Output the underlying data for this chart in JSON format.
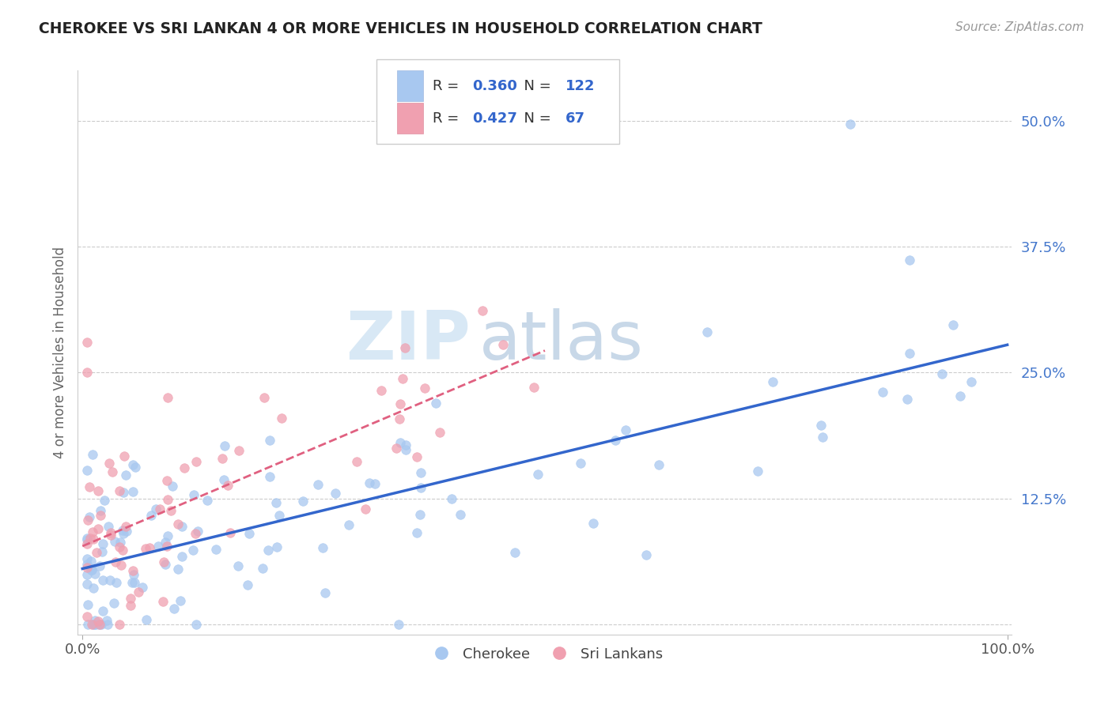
{
  "title": "CHEROKEE VS SRI LANKAN 4 OR MORE VEHICLES IN HOUSEHOLD CORRELATION CHART",
  "source": "Source: ZipAtlas.com",
  "ylabel": "4 or more Vehicles in Household",
  "legend_labels": [
    "Cherokee",
    "Sri Lankans"
  ],
  "cherokee_color": "#a8c8f0",
  "srilanka_color": "#f0a0b0",
  "line_cherokee_color": "#3366cc",
  "line_srilanka_color": "#e06080",
  "cherokee_R": 0.36,
  "cherokee_N": 122,
  "srilanka_R": 0.427,
  "srilanka_N": 67,
  "watermark_zip": "ZIP",
  "watermark_atlas": "atlas",
  "ytick_vals": [
    0.0,
    0.125,
    0.25,
    0.375,
    0.5
  ],
  "ytick_labels": [
    "",
    "12.5%",
    "25.0%",
    "37.5%",
    "50.0%"
  ],
  "xlim": [
    0.0,
    1.0
  ],
  "ylim": [
    0.0,
    0.55
  ]
}
